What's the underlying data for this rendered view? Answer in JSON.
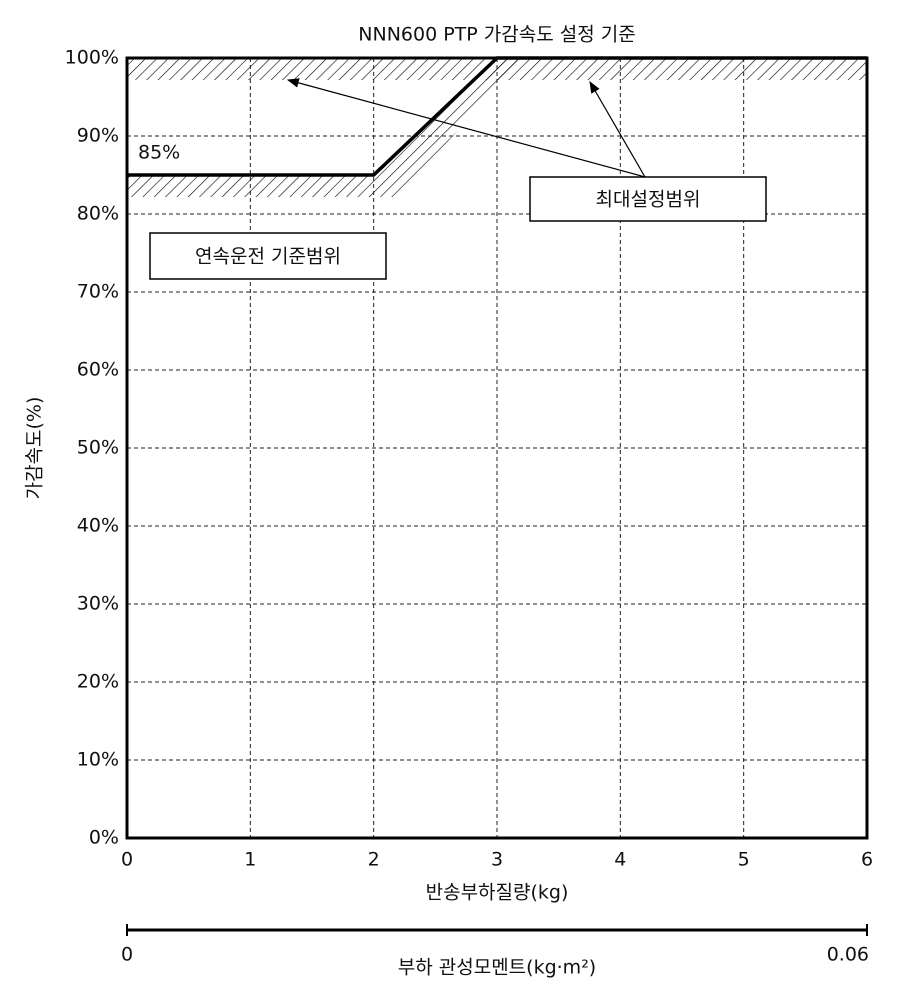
{
  "chart_data": {
    "type": "line",
    "title": "NNN600 PTP 가감속도 설정 기준",
    "x_label": "반송부하질량(kg)",
    "y_label": "가감속도(%)",
    "x": [
      0,
      2,
      3,
      6
    ],
    "series": [
      {
        "name": null,
        "color": "#000000",
        "values": [
          85,
          85,
          100,
          100
        ]
      }
    ],
    "xlim": [
      0,
      6
    ],
    "xticks": [
      0,
      1,
      2,
      3,
      4,
      5,
      6
    ],
    "ylim": [
      0,
      100
    ],
    "yticks": [
      {
        "value": 0,
        "label": "0%"
      },
      {
        "value": 10,
        "label": "10%"
      },
      {
        "value": 20,
        "label": "20%"
      },
      {
        "value": 30,
        "label": "30%"
      },
      {
        "value": 40,
        "label": "40%"
      },
      {
        "value": 50,
        "label": "50%"
      },
      {
        "value": 60,
        "label": "60%"
      },
      {
        "value": 70,
        "label": "70%"
      },
      {
        "value": 80,
        "label": "80%"
      },
      {
        "value": 90,
        "label": "90%"
      },
      {
        "value": 100,
        "label": "100%"
      }
    ],
    "grid": true,
    "x2_label": "부하 관성모멘트(kg·m²)",
    "x2lim": [
      0,
      0.06
    ],
    "x2ticks": [
      0,
      0.06
    ],
    "annotations": [
      "85%",
      "최대설정범위",
      "연속운전 기준범위"
    ]
  }
}
